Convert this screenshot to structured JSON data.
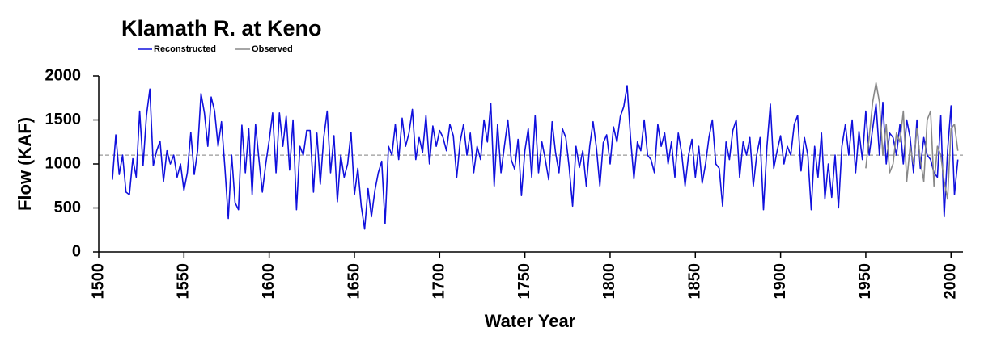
{
  "chart_data": {
    "type": "line",
    "title": "Klamath R. at Keno",
    "x_label": "Water Year",
    "y_label": "Flow (KAF)",
    "xlim": [
      1500,
      2007
    ],
    "xticks": [
      1500,
      1550,
      1600,
      1650,
      1700,
      1750,
      1800,
      1850,
      1900,
      1950,
      2000
    ],
    "ylim": [
      0,
      2000
    ],
    "yticks": [
      0,
      500,
      1000,
      1500,
      2000
    ],
    "mean_line": 1100,
    "mean_line_color": "#999999",
    "series": [
      {
        "name": "Reconstructed",
        "color": "#1010dd",
        "x": [
          1508,
          1510,
          1512,
          1514,
          1516,
          1518,
          1520,
          1522,
          1524,
          1526,
          1528,
          1530,
          1532,
          1534,
          1536,
          1538,
          1540,
          1542,
          1544,
          1546,
          1548,
          1550,
          1552,
          1554,
          1556,
          1558,
          1560,
          1562,
          1564,
          1566,
          1568,
          1570,
          1572,
          1574,
          1576,
          1578,
          1580,
          1582,
          1584,
          1586,
          1588,
          1590,
          1592,
          1594,
          1596,
          1598,
          1600,
          1602,
          1604,
          1606,
          1608,
          1610,
          1612,
          1614,
          1616,
          1618,
          1620,
          1622,
          1624,
          1626,
          1628,
          1630,
          1632,
          1634,
          1636,
          1638,
          1640,
          1642,
          1644,
          1646,
          1648,
          1650,
          1652,
          1654,
          1656,
          1658,
          1660,
          1662,
          1664,
          1666,
          1668,
          1670,
          1672,
          1674,
          1676,
          1678,
          1680,
          1682,
          1684,
          1686,
          1688,
          1690,
          1692,
          1694,
          1696,
          1698,
          1700,
          1702,
          1704,
          1706,
          1708,
          1710,
          1712,
          1714,
          1716,
          1718,
          1720,
          1722,
          1724,
          1726,
          1728,
          1730,
          1732,
          1734,
          1736,
          1738,
          1740,
          1742,
          1744,
          1746,
          1748,
          1750,
          1752,
          1754,
          1756,
          1758,
          1760,
          1762,
          1764,
          1766,
          1768,
          1770,
          1772,
          1774,
          1776,
          1778,
          1780,
          1782,
          1784,
          1786,
          1788,
          1790,
          1792,
          1794,
          1796,
          1798,
          1800,
          1802,
          1804,
          1806,
          1808,
          1810,
          1812,
          1814,
          1816,
          1818,
          1820,
          1822,
          1824,
          1826,
          1828,
          1830,
          1832,
          1834,
          1836,
          1838,
          1840,
          1842,
          1844,
          1846,
          1848,
          1850,
          1852,
          1854,
          1856,
          1858,
          1860,
          1862,
          1864,
          1866,
          1868,
          1870,
          1872,
          1874,
          1876,
          1878,
          1880,
          1882,
          1884,
          1886,
          1888,
          1890,
          1892,
          1894,
          1896,
          1898,
          1900,
          1902,
          1904,
          1906,
          1908,
          1910,
          1912,
          1914,
          1916,
          1918,
          1920,
          1922,
          1924,
          1926,
          1928,
          1930,
          1932,
          1934,
          1936,
          1938,
          1940,
          1942,
          1944,
          1946,
          1948,
          1950,
          1952,
          1954,
          1956,
          1958,
          1960,
          1962,
          1964,
          1966,
          1968,
          1970,
          1972,
          1974,
          1976,
          1978,
          1980,
          1982,
          1984,
          1986,
          1988,
          1990,
          1992,
          1994,
          1996,
          1998,
          2000,
          2002,
          2004
        ],
        "values": [
          820,
          1330,
          880,
          1100,
          680,
          650,
          1060,
          850,
          1600,
          980,
          1550,
          1850,
          980,
          1150,
          1260,
          800,
          1150,
          1000,
          1100,
          850,
          1000,
          700,
          900,
          1360,
          880,
          1150,
          1800,
          1580,
          1200,
          1760,
          1600,
          1200,
          1480,
          960,
          380,
          1100,
          560,
          480,
          1440,
          900,
          1400,
          650,
          1450,
          1050,
          680,
          1000,
          1270,
          1580,
          900,
          1580,
          1200,
          1540,
          930,
          1500,
          480,
          1200,
          1100,
          1380,
          1380,
          680,
          1350,
          770,
          1300,
          1600,
          900,
          1320,
          570,
          1100,
          850,
          1000,
          1360,
          650,
          950,
          520,
          260,
          720,
          400,
          700,
          900,
          1030,
          320,
          1200,
          1100,
          1450,
          1050,
          1520,
          1200,
          1350,
          1620,
          1050,
          1300,
          1130,
          1550,
          1000,
          1430,
          1200,
          1380,
          1300,
          1150,
          1450,
          1320,
          850,
          1250,
          1450,
          1100,
          1350,
          900,
          1200,
          1050,
          1500,
          1250,
          1690,
          750,
          1450,
          900,
          1200,
          1500,
          1050,
          940,
          1280,
          640,
          1150,
          1400,
          850,
          1550,
          900,
          1250,
          1050,
          820,
          1480,
          1130,
          900,
          1400,
          1300,
          960,
          520,
          1200,
          960,
          1150,
          750,
          1200,
          1480,
          1180,
          750,
          1240,
          1330,
          1000,
          1420,
          1250,
          1540,
          1650,
          1890,
          1300,
          830,
          1250,
          1150,
          1500,
          1100,
          1050,
          900,
          1450,
          1200,
          1350,
          1000,
          1250,
          850,
          1350,
          1120,
          750,
          1100,
          1280,
          850,
          1200,
          780,
          1000,
          1300,
          1500,
          1000,
          950,
          520,
          1250,
          1050,
          1380,
          1500,
          850,
          1250,
          1100,
          1300,
          750,
          1100,
          1300,
          480,
          1200,
          1680,
          950,
          1150,
          1320,
          1000,
          1200,
          1100,
          1450,
          1550,
          920,
          1300,
          1100,
          480,
          1200,
          850,
          1350,
          600,
          1000,
          620,
          1100,
          500,
          1200,
          1450,
          1100,
          1500,
          900,
          1370,
          1050,
          1600,
          1100,
          1400,
          1680,
          1100,
          1700,
          1000,
          1350,
          1300,
          1100,
          1450,
          1000,
          1500,
          1300,
          900,
          1500,
          950,
          1300,
          1100,
          1050,
          900,
          850,
          1550,
          400,
          1150,
          1660,
          650,
          1050
        ]
      },
      {
        "name": "Observed",
        "color": "#888888",
        "x": [
          1950,
          1952,
          1954,
          1956,
          1958,
          1960,
          1962,
          1964,
          1966,
          1968,
          1970,
          1972,
          1974,
          1976,
          1978,
          1980,
          1982,
          1984,
          1986,
          1988,
          1990,
          1992,
          1994,
          1996,
          1998,
          2000,
          2002,
          2004
        ],
        "values": [
          950,
          1300,
          1700,
          1920,
          1700,
          1100,
          1450,
          900,
          1000,
          1350,
          1250,
          1600,
          800,
          1200,
          1000,
          1400,
          1050,
          800,
          1500,
          1600,
          750,
          1200,
          1100,
          800,
          600,
          1400,
          1450,
          1150
        ]
      }
    ]
  }
}
